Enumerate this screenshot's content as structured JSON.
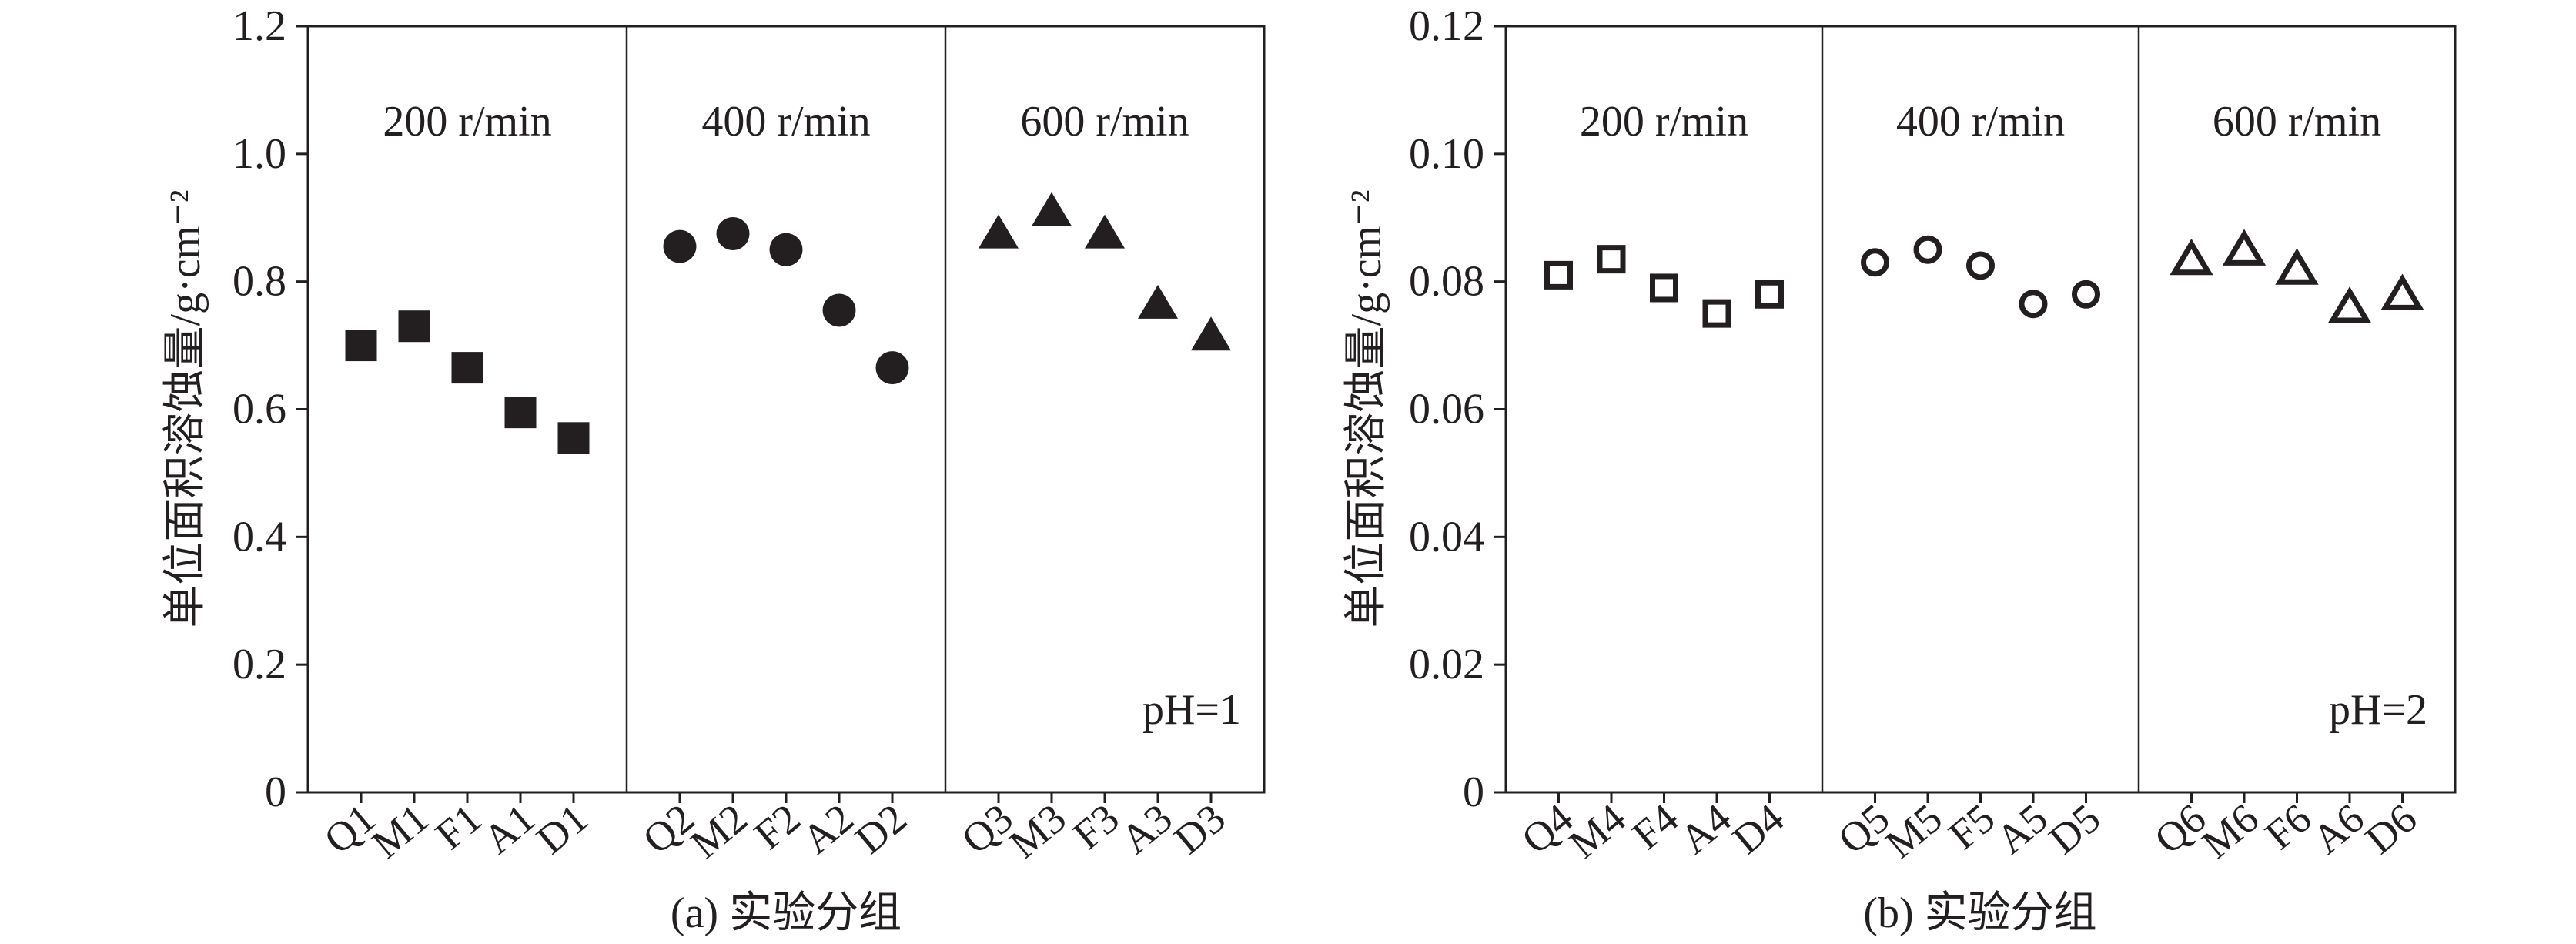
{
  "colors": {
    "ink": "#231f20",
    "background": "#ffffff"
  },
  "chart_data": [
    {
      "type": "scatter",
      "xlabel": "(a) 实验分组",
      "ylabel": "单位面积溶蚀量/g·cm⁻²",
      "ylim": [
        0,
        1.2
      ],
      "yticks": [
        "0",
        "0.2",
        "0.4",
        "0.6",
        "0.8",
        "1.0",
        "1.2"
      ],
      "annotation": "pH=1",
      "grid": false,
      "groups": [
        {
          "label": "200 r/min",
          "marker": "filled-square",
          "categories": [
            "Q1",
            "M1",
            "F1",
            "A1",
            "D1"
          ],
          "values": [
            0.7,
            0.73,
            0.665,
            0.595,
            0.555
          ]
        },
        {
          "label": "400 r/min",
          "marker": "filled-circle",
          "categories": [
            "Q2",
            "M2",
            "F2",
            "A2",
            "D2"
          ],
          "values": [
            0.855,
            0.875,
            0.85,
            0.755,
            0.665
          ]
        },
        {
          "label": "600 r/min",
          "marker": "filled-triangle",
          "categories": [
            "Q3",
            "M3",
            "F3",
            "A3",
            "D3"
          ],
          "values": [
            0.87,
            0.905,
            0.87,
            0.76,
            0.71
          ]
        }
      ]
    },
    {
      "type": "scatter",
      "xlabel": "(b) 实验分组",
      "ylabel": "单位面积溶蚀量/g·cm⁻²",
      "ylim": [
        0,
        0.12
      ],
      "yticks": [
        "0",
        "0.02",
        "0.04",
        "0.06",
        "0.08",
        "0.10",
        "0.12"
      ],
      "annotation": "pH=2",
      "grid": false,
      "groups": [
        {
          "label": "200 r/min",
          "marker": "hollow-square",
          "categories": [
            "Q4",
            "M4",
            "F4",
            "A4",
            "D4"
          ],
          "values": [
            0.081,
            0.0835,
            0.079,
            0.075,
            0.078
          ]
        },
        {
          "label": "400 r/min",
          "marker": "hollow-circle",
          "categories": [
            "Q5",
            "M5",
            "F5",
            "A5",
            "D5"
          ],
          "values": [
            0.083,
            0.085,
            0.0825,
            0.0765,
            0.078
          ]
        },
        {
          "label": "600 r/min",
          "marker": "hollow-triangle",
          "categories": [
            "Q6",
            "M6",
            "F6",
            "A6",
            "D6"
          ],
          "values": [
            0.083,
            0.0845,
            0.0815,
            0.0755,
            0.0775
          ]
        }
      ]
    }
  ]
}
